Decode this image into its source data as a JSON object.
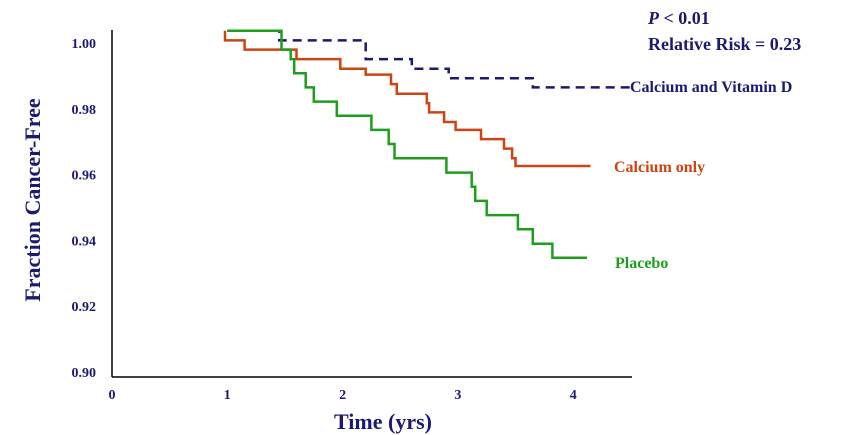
{
  "chart_data": {
    "type": "line",
    "title": "",
    "xlabel": "Time (yrs)",
    "ylabel": "Fraction Cancer-Free",
    "xlim": [
      0,
      4.5
    ],
    "ylim": [
      0.9,
      1.01
    ],
    "xticks": [
      "0",
      "1",
      "2",
      "3",
      "4"
    ],
    "yticks": [
      "0.90",
      "0.92",
      "0.94",
      "0.96",
      "0.98",
      "1.00"
    ],
    "annotations": {
      "p_italic": "P",
      "p_rest": " < 0.01",
      "rr": "Relative Risk = 0.23"
    },
    "series": [
      {
        "name": "Calcium and Vitamin D",
        "color": "#1a1a6e",
        "dashed": true,
        "points": [
          [
            1.0,
            1.0037
          ],
          [
            1.45,
            1.0037
          ],
          [
            1.45,
            1.0008
          ],
          [
            2.2,
            1.0008
          ],
          [
            2.2,
            0.9951
          ],
          [
            2.6,
            0.9951
          ],
          [
            2.6,
            0.9922
          ],
          [
            2.92,
            0.9922
          ],
          [
            2.92,
            0.9893
          ],
          [
            3.65,
            0.9893
          ],
          [
            3.65,
            0.9865
          ],
          [
            4.5,
            0.9865
          ]
        ]
      },
      {
        "name": "Calcium only",
        "color": "#cc4411",
        "dashed": false,
        "points": [
          [
            0.98,
            1.0037
          ],
          [
            0.98,
            1.0008
          ],
          [
            1.15,
            1.0008
          ],
          [
            1.15,
            0.998
          ],
          [
            1.6,
            0.998
          ],
          [
            1.6,
            0.9951
          ],
          [
            1.98,
            0.9951
          ],
          [
            1.98,
            0.9922
          ],
          [
            2.2,
            0.9922
          ],
          [
            2.2,
            0.9904
          ],
          [
            2.42,
            0.9904
          ],
          [
            2.42,
            0.9875
          ],
          [
            2.47,
            0.9875
          ],
          [
            2.47,
            0.9846
          ],
          [
            2.73,
            0.9846
          ],
          [
            2.73,
            0.9817
          ],
          [
            2.75,
            0.9817
          ],
          [
            2.75,
            0.9789
          ],
          [
            2.88,
            0.9789
          ],
          [
            2.88,
            0.976
          ],
          [
            2.98,
            0.976
          ],
          [
            2.98,
            0.9736
          ],
          [
            3.2,
            0.9736
          ],
          [
            3.2,
            0.9708
          ],
          [
            3.4,
            0.9708
          ],
          [
            3.4,
            0.9679
          ],
          [
            3.47,
            0.9679
          ],
          [
            3.47,
            0.965
          ],
          [
            3.5,
            0.965
          ],
          [
            3.5,
            0.9626
          ],
          [
            4.15,
            0.9626
          ]
        ]
      },
      {
        "name": "Placebo",
        "color": "#1e9e1e",
        "dashed": false,
        "points": [
          [
            1.0,
            1.0037
          ],
          [
            1.47,
            1.0037
          ],
          [
            1.47,
            0.998
          ],
          [
            1.55,
            0.998
          ],
          [
            1.55,
            0.9951
          ],
          [
            1.58,
            0.9951
          ],
          [
            1.58,
            0.9908
          ],
          [
            1.68,
            0.9908
          ],
          [
            1.68,
            0.9865
          ],
          [
            1.75,
            0.9865
          ],
          [
            1.75,
            0.9822
          ],
          [
            1.95,
            0.9822
          ],
          [
            1.95,
            0.9779
          ],
          [
            2.25,
            0.9779
          ],
          [
            2.25,
            0.9736
          ],
          [
            2.4,
            0.9736
          ],
          [
            2.4,
            0.9693
          ],
          [
            2.45,
            0.9693
          ],
          [
            2.45,
            0.965
          ],
          [
            2.9,
            0.965
          ],
          [
            2.9,
            0.9606
          ],
          [
            3.12,
            0.9606
          ],
          [
            3.12,
            0.9563
          ],
          [
            3.15,
            0.9563
          ],
          [
            3.15,
            0.952
          ],
          [
            3.25,
            0.952
          ],
          [
            3.25,
            0.9477
          ],
          [
            3.52,
            0.9477
          ],
          [
            3.52,
            0.9434
          ],
          [
            3.65,
            0.9434
          ],
          [
            3.65,
            0.939
          ],
          [
            3.82,
            0.939
          ],
          [
            3.82,
            0.9347
          ],
          [
            4.12,
            0.9347
          ]
        ]
      }
    ]
  }
}
